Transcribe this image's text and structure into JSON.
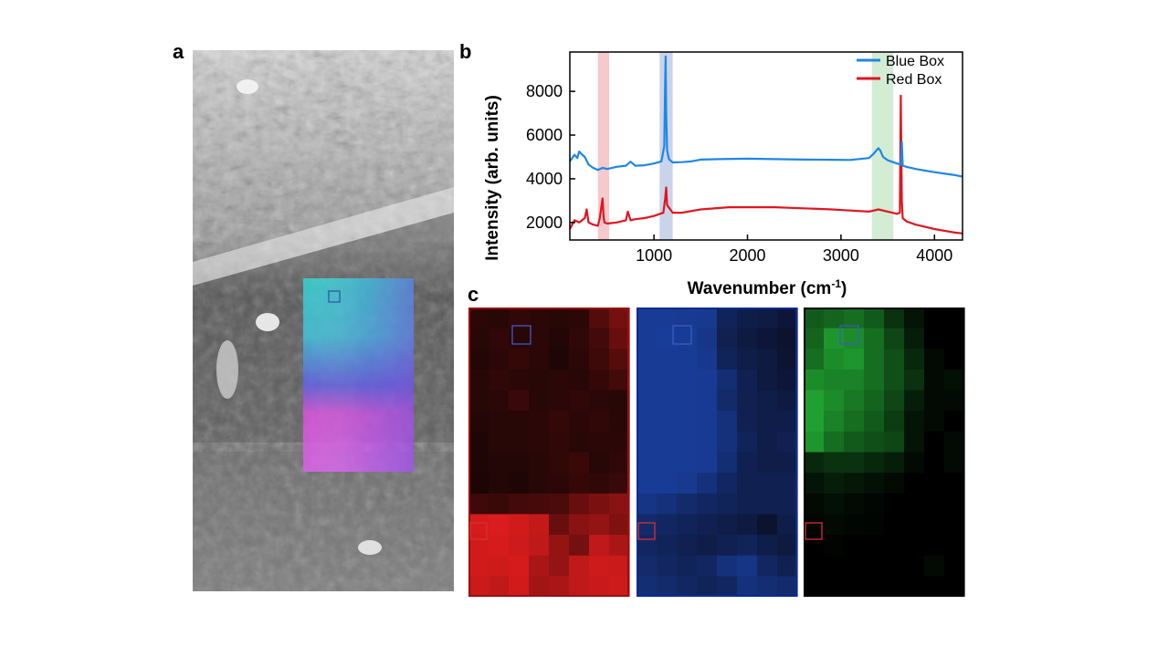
{
  "figure": {
    "panel_labels": {
      "a": "a",
      "b": "b",
      "c": "c"
    },
    "colors": {
      "blue": "#1f86e6",
      "red": "#e0151f",
      "green": "#24b33a",
      "pink_band": "#f6c9cc",
      "blue_band": "#c9d4ea",
      "green_band": "#d3ecd4"
    }
  },
  "chart_data": {
    "type": "line",
    "xlabel": "Wavenumber (cm",
    "xlabel_sup": "-1",
    "xlabel_end": ")",
    "ylabel": "Intensity (arb. units)",
    "xlim": [
      100,
      4300
    ],
    "ylim": [
      1200,
      9800
    ],
    "xticks": [
      1000,
      2000,
      3000,
      4000
    ],
    "yticks": [
      2000,
      4000,
      6000,
      8000
    ],
    "highlight_bands": [
      {
        "x0": 400,
        "x1": 520,
        "color": "pink"
      },
      {
        "x0": 1060,
        "x1": 1200,
        "color": "blue"
      },
      {
        "x0": 3330,
        "x1": 3560,
        "color": "green"
      }
    ],
    "series": [
      {
        "name": "Blue Box",
        "color": "#1f86e6",
        "x": [
          100,
          150,
          180,
          200,
          220,
          260,
          300,
          350,
          400,
          450,
          500,
          600,
          700,
          750,
          800,
          900,
          1000,
          1080,
          1110,
          1120,
          1125,
          1130,
          1140,
          1160,
          1200,
          1300,
          1400,
          1500,
          1700,
          2000,
          2300,
          2600,
          2900,
          3100,
          3300,
          3350,
          3400,
          3420,
          3450,
          3500,
          3600,
          3640,
          3650,
          3660,
          3700,
          3800,
          4000,
          4200,
          4300
        ],
        "values": [
          4800,
          5100,
          4950,
          5250,
          5150,
          5000,
          4650,
          4500,
          4400,
          4500,
          4450,
          4550,
          4600,
          4780,
          4600,
          4620,
          4700,
          4800,
          5500,
          8500,
          9600,
          7000,
          5300,
          4900,
          4750,
          4760,
          4800,
          4880,
          4900,
          4920,
          4900,
          4880,
          4870,
          4860,
          4950,
          5150,
          5400,
          5300,
          5000,
          4850,
          4700,
          4650,
          5700,
          4600,
          4550,
          4450,
          4300,
          4180,
          4100
        ]
      },
      {
        "name": "Red Box",
        "color": "#e0151f",
        "x": [
          100,
          150,
          200,
          260,
          280,
          300,
          350,
          400,
          420,
          450,
          460,
          470,
          500,
          600,
          700,
          720,
          750,
          800,
          900,
          1000,
          1100,
          1120,
          1130,
          1140,
          1200,
          1300,
          1500,
          1800,
          2000,
          2300,
          2600,
          2900,
          3100,
          3300,
          3400,
          3500,
          3600,
          3630,
          3640,
          3650,
          3660,
          3700,
          3800,
          4000,
          4200,
          4300
        ],
        "values": [
          1700,
          2100,
          2000,
          2200,
          2600,
          2000,
          1900,
          1850,
          2200,
          3100,
          2300,
          2000,
          1950,
          2000,
          2100,
          2500,
          2100,
          2150,
          2200,
          2300,
          2450,
          3100,
          3600,
          2800,
          2450,
          2450,
          2600,
          2700,
          2700,
          2700,
          2650,
          2600,
          2550,
          2500,
          2600,
          2500,
          2400,
          2450,
          7800,
          3000,
          2200,
          2050,
          1900,
          1700,
          1550,
          1500
        ]
      }
    ]
  },
  "maps": {
    "red": [
      [
        0.12,
        0.1,
        0.14,
        0.12,
        0.1,
        0.12,
        0.3,
        0.45
      ],
      [
        0.1,
        0.14,
        0.1,
        0.12,
        0.08,
        0.14,
        0.22,
        0.4
      ],
      [
        0.08,
        0.12,
        0.16,
        0.12,
        0.06,
        0.12,
        0.2,
        0.32
      ],
      [
        0.1,
        0.14,
        0.12,
        0.1,
        0.12,
        0.1,
        0.16,
        0.22
      ],
      [
        0.1,
        0.12,
        0.18,
        0.1,
        0.12,
        0.14,
        0.12,
        0.1
      ],
      [
        0.08,
        0.1,
        0.1,
        0.12,
        0.16,
        0.12,
        0.14,
        0.1
      ],
      [
        0.06,
        0.1,
        0.1,
        0.12,
        0.14,
        0.1,
        0.12,
        0.12
      ],
      [
        0.06,
        0.08,
        0.08,
        0.1,
        0.14,
        0.18,
        0.1,
        0.14
      ],
      [
        0.04,
        0.08,
        0.06,
        0.1,
        0.12,
        0.16,
        0.14,
        0.18
      ],
      [
        0.2,
        0.18,
        0.22,
        0.24,
        0.26,
        0.4,
        0.48,
        0.55
      ],
      [
        0.9,
        0.92,
        0.88,
        0.82,
        0.4,
        0.55,
        0.6,
        0.5
      ],
      [
        0.88,
        0.9,
        0.86,
        0.8,
        0.6,
        0.45,
        0.8,
        0.7
      ],
      [
        0.88,
        0.86,
        0.9,
        0.7,
        0.6,
        0.8,
        0.86,
        0.85
      ],
      [
        0.85,
        0.8,
        0.88,
        0.66,
        0.7,
        0.8,
        0.84,
        0.86
      ]
    ],
    "blue": [
      [
        0.7,
        0.7,
        0.68,
        0.66,
        0.35,
        0.25,
        0.22,
        0.15
      ],
      [
        0.7,
        0.72,
        0.7,
        0.62,
        0.3,
        0.2,
        0.15,
        0.1
      ],
      [
        0.7,
        0.7,
        0.7,
        0.65,
        0.35,
        0.25,
        0.2,
        0.12
      ],
      [
        0.7,
        0.7,
        0.7,
        0.68,
        0.5,
        0.3,
        0.2,
        0.15
      ],
      [
        0.7,
        0.7,
        0.7,
        0.68,
        0.45,
        0.3,
        0.25,
        0.2
      ],
      [
        0.7,
        0.7,
        0.7,
        0.68,
        0.55,
        0.3,
        0.25,
        0.25
      ],
      [
        0.7,
        0.7,
        0.7,
        0.68,
        0.55,
        0.35,
        0.25,
        0.3
      ],
      [
        0.7,
        0.7,
        0.7,
        0.68,
        0.5,
        0.3,
        0.25,
        0.25
      ],
      [
        0.7,
        0.7,
        0.66,
        0.55,
        0.4,
        0.3,
        0.3,
        0.3
      ],
      [
        0.6,
        0.55,
        0.45,
        0.4,
        0.35,
        0.3,
        0.3,
        0.3
      ],
      [
        0.45,
        0.4,
        0.35,
        0.3,
        0.25,
        0.2,
        0.1,
        0.25
      ],
      [
        0.4,
        0.35,
        0.3,
        0.25,
        0.3,
        0.35,
        0.25,
        0.2
      ],
      [
        0.45,
        0.4,
        0.35,
        0.4,
        0.55,
        0.6,
        0.4,
        0.3
      ],
      [
        0.5,
        0.45,
        0.4,
        0.35,
        0.4,
        0.55,
        0.5,
        0.45
      ]
    ],
    "green": [
      [
        0.45,
        0.5,
        0.55,
        0.45,
        0.25,
        0.1,
        0.0,
        0.0
      ],
      [
        0.5,
        0.75,
        0.7,
        0.55,
        0.35,
        0.15,
        0.0,
        0.0
      ],
      [
        0.55,
        0.7,
        0.75,
        0.55,
        0.4,
        0.2,
        0.05,
        0.0
      ],
      [
        0.7,
        0.65,
        0.65,
        0.55,
        0.4,
        0.25,
        0.05,
        0.08
      ],
      [
        0.8,
        0.7,
        0.6,
        0.5,
        0.35,
        0.15,
        0.05,
        0.05
      ],
      [
        0.8,
        0.65,
        0.55,
        0.45,
        0.3,
        0.1,
        0.05,
        0.0
      ],
      [
        0.75,
        0.55,
        0.45,
        0.4,
        0.35,
        0.1,
        0.0,
        0.05
      ],
      [
        0.2,
        0.25,
        0.25,
        0.2,
        0.15,
        0.05,
        0.0,
        0.05
      ],
      [
        0.1,
        0.15,
        0.12,
        0.08,
        0.05,
        0.0,
        0.0,
        0.0
      ],
      [
        0.05,
        0.08,
        0.05,
        0.03,
        0.0,
        0.0,
        0.0,
        0.0
      ],
      [
        0.03,
        0.05,
        0.03,
        0.02,
        0.0,
        0.0,
        0.0,
        0.0
      ],
      [
        0.0,
        0.02,
        0.0,
        0.0,
        0.0,
        0.0,
        0.0,
        0.0
      ],
      [
        0.0,
        0.0,
        0.0,
        0.0,
        0.0,
        0.0,
        0.05,
        0.0
      ],
      [
        0.0,
        0.0,
        0.0,
        0.0,
        0.0,
        0.0,
        0.0,
        0.0
      ]
    ]
  }
}
